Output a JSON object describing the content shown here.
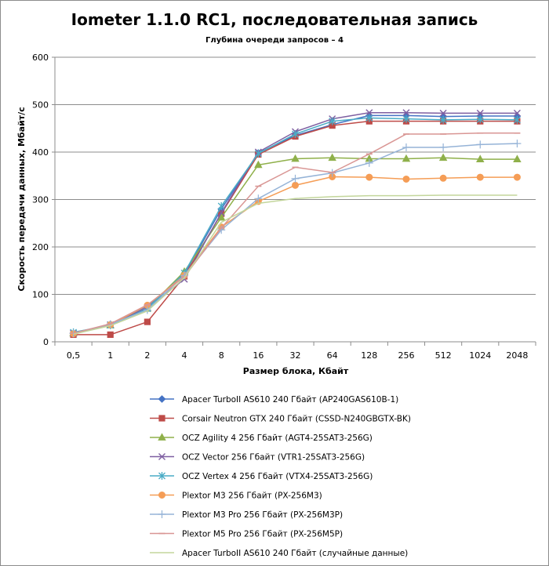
{
  "chart_data": {
    "type": "line",
    "title": "Iometer 1.1.0 RC1, последовательная запись",
    "subtitle": "Глубина очереди запросов – 4",
    "xlabel": "Размер блока, Кбайт",
    "ylabel": "Скорость передачи данных, Мбайт/с",
    "categories": [
      "0,5",
      "1",
      "2",
      "4",
      "8",
      "16",
      "32",
      "64",
      "128",
      "256",
      "512",
      "1024",
      "2048"
    ],
    "ylim": [
      0,
      600
    ],
    "yticks": [
      "0",
      "100",
      "200",
      "300",
      "400",
      "500",
      "600"
    ],
    "grid": "horizontal",
    "legend_position": "bottom",
    "series": [
      {
        "name": "Apacer TurboII AS610 240 Гбайт (AP240GAS610B-1)",
        "color": "#4472c4",
        "marker": "diamond",
        "values": [
          17,
          37,
          75,
          142,
          280,
          398,
          435,
          458,
          477,
          477,
          475,
          476,
          476
        ]
      },
      {
        "name": "Corsair Neutron GTX 240 Гбайт (CSSD-N240GBGTX-BK)",
        "color": "#be4b48",
        "marker": "square",
        "values": [
          15,
          15,
          42,
          138,
          270,
          395,
          433,
          456,
          465,
          465,
          465,
          465,
          465
        ]
      },
      {
        "name": "OCZ Agility 4 256 Гбайт (AGT4-25SAT3-256G)",
        "color": "#8fb04a",
        "marker": "triangle",
        "values": [
          18,
          35,
          70,
          148,
          262,
          373,
          386,
          388,
          386,
          386,
          388,
          385,
          385
        ]
      },
      {
        "name": "OCZ Vector 256 Гбайт (VTR1-25SAT3-256G)",
        "color": "#7e5fa1",
        "marker": "x",
        "values": [
          18,
          36,
          72,
          132,
          272,
          400,
          443,
          470,
          483,
          483,
          482,
          482,
          482
        ]
      },
      {
        "name": "OCZ Vertex 4 256 Гбайт (VTX4-25SAT3-256G)",
        "color": "#4aacc6",
        "marker": "star",
        "values": [
          20,
          35,
          70,
          145,
          286,
          397,
          438,
          465,
          472,
          470,
          468,
          469,
          468
        ]
      },
      {
        "name": "Plextor M3 256 Гбайт (PX-256M3)",
        "color": "#f59d56",
        "marker": "circle",
        "values": [
          17,
          36,
          77,
          140,
          242,
          296,
          330,
          348,
          347,
          343,
          345,
          347,
          347
        ]
      },
      {
        "name": "Plextor M3 Pro 256 Гбайт (PX-256M3P)",
        "color": "#95b3d7",
        "marker": "plus",
        "values": [
          18,
          37,
          67,
          140,
          236,
          302,
          344,
          356,
          377,
          410,
          410,
          416,
          418
        ]
      },
      {
        "name": "Plextor M5 Pro 256 Гбайт (PX-256M5P)",
        "color": "#d99694",
        "marker": "dash",
        "values": [
          18,
          38,
          78,
          137,
          240,
          328,
          368,
          357,
          396,
          438,
          438,
          440,
          440
        ]
      },
      {
        "name": "Apacer TurboII AS610 240 Гбайт (случайные данные)",
        "color": "#c3d69b",
        "marker": "none",
        "values": [
          16,
          34,
          65,
          135,
          252,
          292,
          302,
          306,
          308,
          308,
          309,
          309,
          309
        ]
      }
    ]
  }
}
